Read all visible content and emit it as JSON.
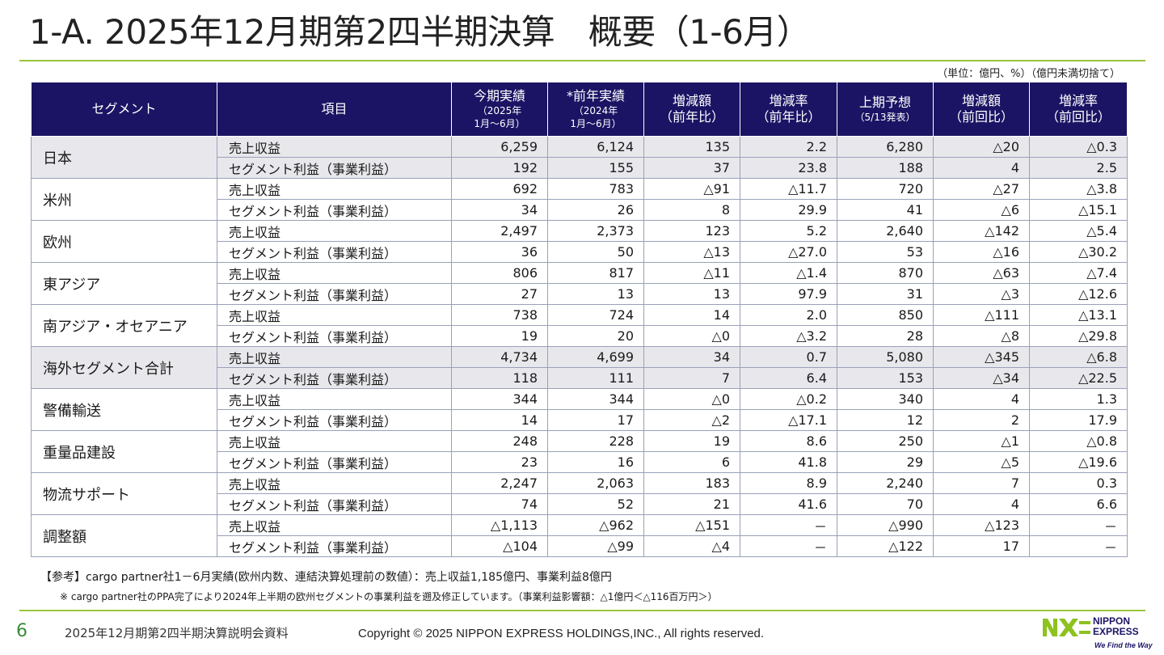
{
  "title": "1-A. 2025年12月期第2四半期決算　概要（1-6月）",
  "unit_note": "（単位：億円、%）（億円未満切捨て）",
  "table": {
    "headers": {
      "segment": "セグメント",
      "item": "項目",
      "current": {
        "main": "今期実績",
        "sub1": "（2025年",
        "sub2": "1月～6月）"
      },
      "prior": {
        "main": "*前年実績",
        "sub1": "（2024年",
        "sub2": "1月～6月）"
      },
      "diff_prior": {
        "main": "増減額",
        "sub1": "（前年比）"
      },
      "rate_prior": {
        "main": "増減率",
        "sub1": "（前年比）"
      },
      "forecast": {
        "main": "上期予想",
        "sub1": "（5/13発表）"
      },
      "diff_forecast": {
        "main": "増減額",
        "sub1": "（前回比）"
      },
      "rate_forecast": {
        "main": "増減率",
        "sub1": "（前回比）"
      }
    },
    "segments": [
      {
        "name": "日本",
        "shaded": true,
        "rows": [
          {
            "item": "売上収益",
            "values": [
              "6,259",
              "6,124",
              "135",
              "2.2",
              "6,280",
              "△20",
              "△0.3"
            ]
          },
          {
            "item": "セグメント利益（事業利益）",
            "values": [
              "192",
              "155",
              "37",
              "23.8",
              "188",
              "4",
              "2.5"
            ]
          }
        ]
      },
      {
        "name": "米州",
        "shaded": false,
        "rows": [
          {
            "item": "売上収益",
            "values": [
              "692",
              "783",
              "△91",
              "△11.7",
              "720",
              "△27",
              "△3.8"
            ]
          },
          {
            "item": "セグメント利益（事業利益）",
            "values": [
              "34",
              "26",
              "8",
              "29.9",
              "41",
              "△6",
              "△15.1"
            ]
          }
        ]
      },
      {
        "name": "欧州",
        "shaded": false,
        "rows": [
          {
            "item": "売上収益",
            "values": [
              "2,497",
              "2,373",
              "123",
              "5.2",
              "2,640",
              "△142",
              "△5.4"
            ]
          },
          {
            "item": "セグメント利益（事業利益）",
            "values": [
              "36",
              "50",
              "△13",
              "△27.0",
              "53",
              "△16",
              "△30.2"
            ]
          }
        ]
      },
      {
        "name": "東アジア",
        "shaded": false,
        "rows": [
          {
            "item": "売上収益",
            "values": [
              "806",
              "817",
              "△11",
              "△1.4",
              "870",
              "△63",
              "△7.4"
            ]
          },
          {
            "item": "セグメント利益（事業利益）",
            "values": [
              "27",
              "13",
              "13",
              "97.9",
              "31",
              "△3",
              "△12.6"
            ]
          }
        ]
      },
      {
        "name": "南アジア・オセアニア",
        "shaded": false,
        "rows": [
          {
            "item": "売上収益",
            "values": [
              "738",
              "724",
              "14",
              "2.0",
              "850",
              "△111",
              "△13.1"
            ]
          },
          {
            "item": "セグメント利益（事業利益）",
            "values": [
              "19",
              "20",
              "△0",
              "△3.2",
              "28",
              "△8",
              "△29.8"
            ]
          }
        ]
      },
      {
        "name": "海外セグメント合計",
        "shaded": true,
        "rows": [
          {
            "item": "売上収益",
            "values": [
              "4,734",
              "4,699",
              "34",
              "0.7",
              "5,080",
              "△345",
              "△6.8"
            ]
          },
          {
            "item": "セグメント利益（事業利益）",
            "values": [
              "118",
              "111",
              "7",
              "6.4",
              "153",
              "△34",
              "△22.5"
            ]
          }
        ]
      },
      {
        "name": "警備輸送",
        "shaded": false,
        "rows": [
          {
            "item": "売上収益",
            "values": [
              "344",
              "344",
              "△0",
              "△0.2",
              "340",
              "4",
              "1.3"
            ]
          },
          {
            "item": "セグメント利益（事業利益）",
            "values": [
              "14",
              "17",
              "△2",
              "△17.1",
              "12",
              "2",
              "17.9"
            ]
          }
        ]
      },
      {
        "name": "重量品建設",
        "shaded": false,
        "rows": [
          {
            "item": "売上収益",
            "values": [
              "248",
              "228",
              "19",
              "8.6",
              "250",
              "△1",
              "△0.8"
            ]
          },
          {
            "item": "セグメント利益（事業利益）",
            "values": [
              "23",
              "16",
              "6",
              "41.8",
              "29",
              "△5",
              "△19.6"
            ]
          }
        ]
      },
      {
        "name": "物流サポート",
        "shaded": false,
        "rows": [
          {
            "item": "売上収益",
            "values": [
              "2,247",
              "2,063",
              "183",
              "8.9",
              "2,240",
              "7",
              "0.3"
            ]
          },
          {
            "item": "セグメント利益（事業利益）",
            "values": [
              "74",
              "52",
              "21",
              "41.6",
              "70",
              "4",
              "6.6"
            ]
          }
        ]
      },
      {
        "name": "調整額",
        "shaded": false,
        "rows": [
          {
            "item": "売上収益",
            "values": [
              "△1,113",
              "△962",
              "△151",
              "－",
              "△990",
              "△123",
              "－"
            ]
          },
          {
            "item": "セグメント利益（事業利益）",
            "values": [
              "△104",
              "△99",
              "△4",
              "－",
              "△122",
              "17",
              "－"
            ]
          }
        ]
      }
    ]
  },
  "reference_note": "【参考】cargo partner社1－6月実績(欧州内数、連結決算処理前の数値）：売上収益1,185億円、事業利益8億円",
  "footnote": "※ cargo partner社のPPA完了により2024年上半期の欧州セグメントの事業利益を遡及修正しています。（事業利益影響額：△1億円＜△116百万円＞）",
  "footer": {
    "page_number": "6",
    "document_name": "2025年12月期第2四半期決算説明会資料",
    "copyright": "Copyright © 2025 NIPPON EXPRESS HOLDINGS,INC., All rights reserved."
  },
  "logo": {
    "brand_line1": "NIPPON",
    "brand_line2": "EXPRESS",
    "tagline": "We Find the Way",
    "colors": {
      "green": "#8dc21f",
      "navy": "#1b1464"
    }
  },
  "colors": {
    "header_bg": "#1b1464",
    "accent_rule": "#9bc53d",
    "shaded_row": "#e8e8ec"
  }
}
